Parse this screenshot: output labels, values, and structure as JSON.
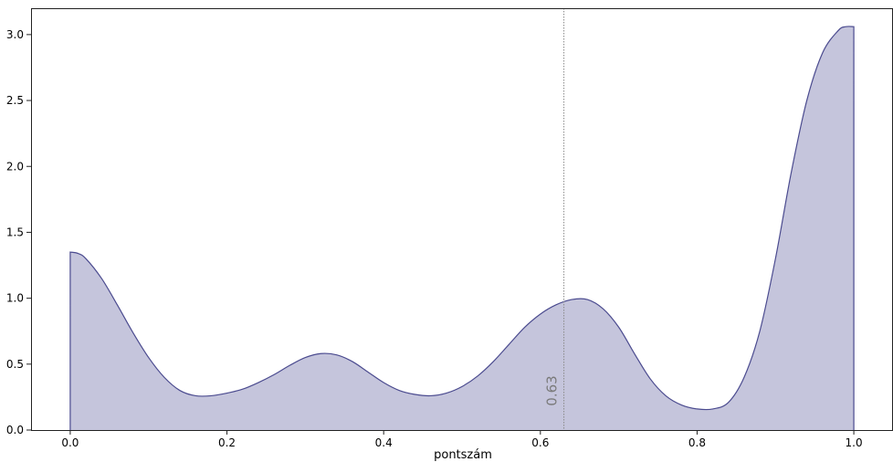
{
  "chart_data": {
    "type": "area",
    "title": "",
    "xlabel": "pontszám",
    "ylabel": "",
    "xlim": [
      -0.05,
      1.05
    ],
    "ylim": [
      0.0,
      3.2
    ],
    "xticks": [
      0.0,
      0.2,
      0.4,
      0.6,
      0.8,
      1.0
    ],
    "yticks": [
      0.0,
      0.5,
      1.0,
      1.5,
      2.0,
      2.5,
      3.0
    ],
    "xtick_labels": [
      "0.0",
      "0.2",
      "0.4",
      "0.6",
      "0.8",
      "1.0"
    ],
    "ytick_labels": [
      "0.0",
      "0.5",
      "1.0",
      "1.5",
      "2.0",
      "2.5",
      "3.0"
    ],
    "grid": false,
    "series": [
      {
        "fill_color": "#c5c5dc",
        "line_color": "#4b4b8f",
        "x": [
          0.0,
          0.01,
          0.02,
          0.04,
          0.06,
          0.08,
          0.1,
          0.12,
          0.14,
          0.16,
          0.18,
          0.2,
          0.22,
          0.24,
          0.26,
          0.28,
          0.3,
          0.32,
          0.34,
          0.36,
          0.38,
          0.4,
          0.42,
          0.44,
          0.46,
          0.48,
          0.5,
          0.52,
          0.54,
          0.56,
          0.58,
          0.6,
          0.62,
          0.64,
          0.66,
          0.68,
          0.7,
          0.72,
          0.74,
          0.76,
          0.78,
          0.8,
          0.82,
          0.84,
          0.86,
          0.88,
          0.9,
          0.92,
          0.94,
          0.96,
          0.98,
          0.99,
          1.0
        ],
        "y": [
          1.35,
          1.34,
          1.3,
          1.15,
          0.95,
          0.74,
          0.55,
          0.4,
          0.3,
          0.26,
          0.26,
          0.28,
          0.31,
          0.36,
          0.42,
          0.49,
          0.55,
          0.58,
          0.57,
          0.52,
          0.44,
          0.36,
          0.3,
          0.27,
          0.26,
          0.28,
          0.33,
          0.41,
          0.52,
          0.65,
          0.78,
          0.88,
          0.95,
          0.99,
          0.99,
          0.92,
          0.78,
          0.58,
          0.39,
          0.26,
          0.19,
          0.16,
          0.16,
          0.21,
          0.4,
          0.75,
          1.3,
          1.95,
          2.5,
          2.86,
          3.03,
          3.06,
          3.06
        ]
      }
    ],
    "annotations": [
      {
        "type": "vline",
        "x": 0.63,
        "label": "0.63",
        "color": "#8a8a8a"
      }
    ]
  }
}
